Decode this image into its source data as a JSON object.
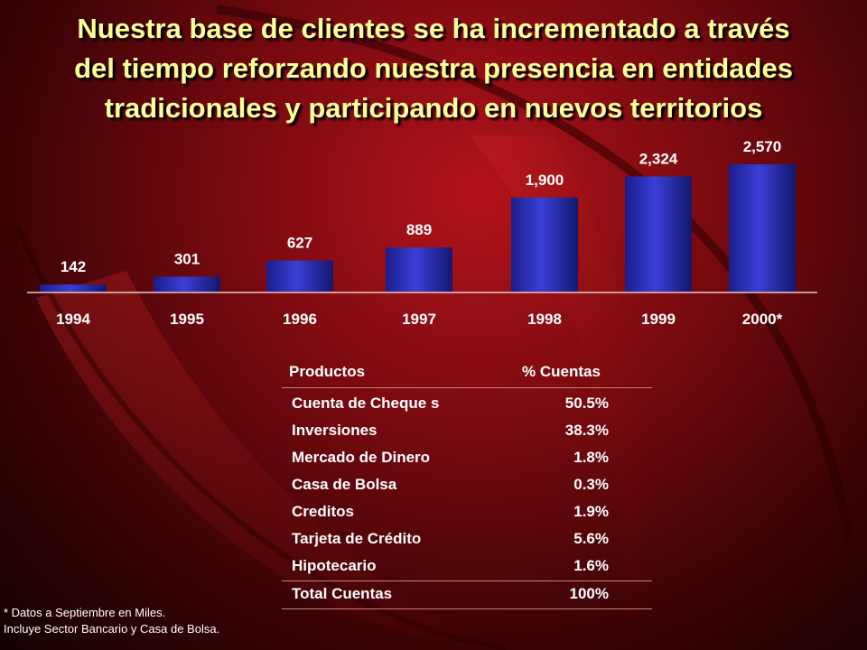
{
  "title": {
    "line1": "Nuestra base de clientes se ha incrementado a través",
    "line2": "del tiempo reforzando nuestra presencia en entidades",
    "line3": "tradicionales y participando en nuevos territorios"
  },
  "chart_data": {
    "type": "bar",
    "categories": [
      "1994",
      "1995",
      "1996",
      "1997",
      "1998",
      "1999",
      "2000*"
    ],
    "values": [
      142,
      301,
      627,
      889,
      1900,
      2324,
      2570
    ],
    "value_labels": [
      "142",
      "301",
      "627",
      "889",
      "1,900",
      "2,324",
      "2,570"
    ],
    "title": "",
    "xlabel": "",
    "ylabel": "",
    "ylim": [
      0,
      2570
    ],
    "grid": false,
    "bar_color": "#2b2fb8"
  },
  "table": {
    "headers": [
      "Productos",
      "% Cuentas"
    ],
    "rows": [
      [
        "Cuenta de Cheque s",
        "50.5%"
      ],
      [
        "Inversiones",
        "38.3%"
      ],
      [
        "Mercado de Dinero",
        "1.8%"
      ],
      [
        "Casa de Bolsa",
        "0.3%"
      ],
      [
        "Creditos",
        "1.9%"
      ],
      [
        "Tarjeta de Crédito",
        "5.6%"
      ],
      [
        "Hipotecario",
        "1.6%"
      ]
    ],
    "total": [
      "Total Cuentas",
      "100%"
    ]
  },
  "footnote": {
    "line1": "* Datos a Septiembre en Miles.",
    "line2": "Incluye Sector Bancario y Casa de Bolsa."
  },
  "colors": {
    "title": "#ffff99",
    "background": "#7a0a10",
    "bar": "#2b2fb8"
  }
}
